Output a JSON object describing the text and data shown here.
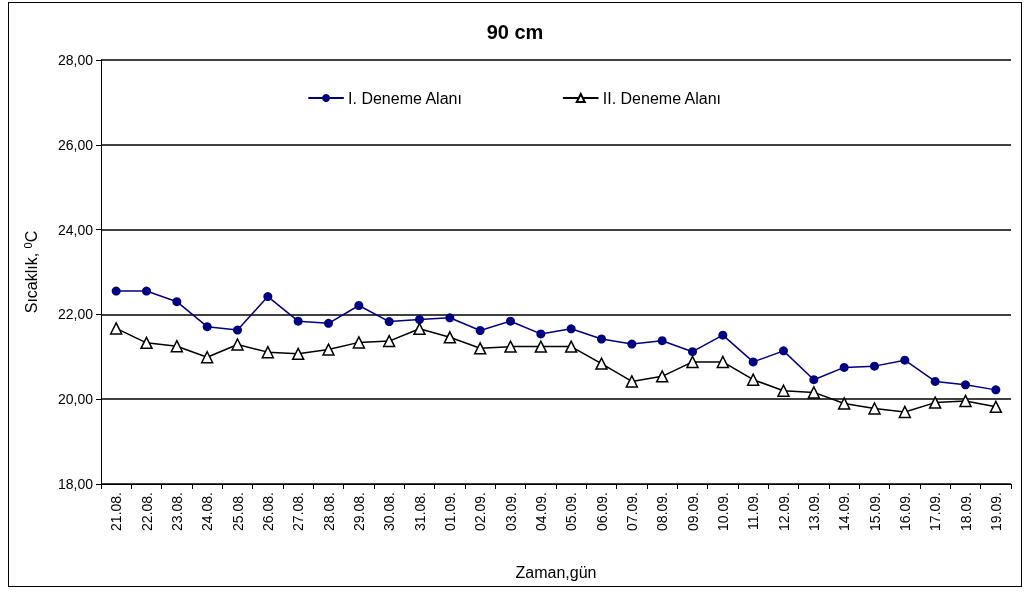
{
  "chart_data": {
    "type": "line",
    "title": "90 cm",
    "xlabel": "Zaman,gün",
    "ylabel": "Sıcaklık, $^{0}$C",
    "categories": [
      "21.08.",
      "22.08.",
      "23.08.",
      "24.08.",
      "25.08.",
      "26.08.",
      "27.08.",
      "28.08.",
      "29.08.",
      "30.08.",
      "31.08.",
      "01.09.",
      "02.09.",
      "03.09.",
      "04.09.",
      "05.09.",
      "06.09.",
      "07.09.",
      "08.09.",
      "09.09.",
      "10.09.",
      "11.09.",
      "12.09.",
      "13.09.",
      "14.09.",
      "15.09.",
      "16.09.",
      "17.09.",
      "18.09.",
      "19.09."
    ],
    "series": [
      {
        "name": "I. Deneme Alanı",
        "color": "#000080",
        "marker": "circle",
        "values": [
          22.55,
          22.55,
          22.3,
          21.71,
          21.63,
          22.42,
          21.84,
          21.79,
          22.21,
          21.83,
          21.88,
          21.92,
          21.62,
          21.84,
          21.54,
          21.66,
          21.42,
          21.3,
          21.38,
          21.12,
          21.51,
          20.88,
          21.14,
          20.46,
          20.75,
          20.78,
          20.92,
          20.42,
          20.34,
          20.22
        ]
      },
      {
        "name": "II. Deneme Alanı",
        "color": "#000000",
        "marker": "triangle",
        "values": [
          21.67,
          21.33,
          21.25,
          20.99,
          21.29,
          21.11,
          21.07,
          21.17,
          21.34,
          21.37,
          21.66,
          21.46,
          21.2,
          21.24,
          21.24,
          21.24,
          20.84,
          20.42,
          20.54,
          20.88,
          20.88,
          20.46,
          20.2,
          20.16,
          19.9,
          19.78,
          19.7,
          19.92,
          19.96,
          19.82
        ]
      }
    ],
    "ylim": [
      18,
      28
    ],
    "yticks": [
      {
        "value": 18,
        "label": "18,00"
      },
      {
        "value": 20,
        "label": "20,00"
      },
      {
        "value": 22,
        "label": "22,00"
      },
      {
        "value": 24,
        "label": "24,00"
      },
      {
        "value": 26,
        "label": "26,00"
      },
      {
        "value": 28,
        "label": "28,00"
      }
    ],
    "grid": "y",
    "legend": "top"
  }
}
